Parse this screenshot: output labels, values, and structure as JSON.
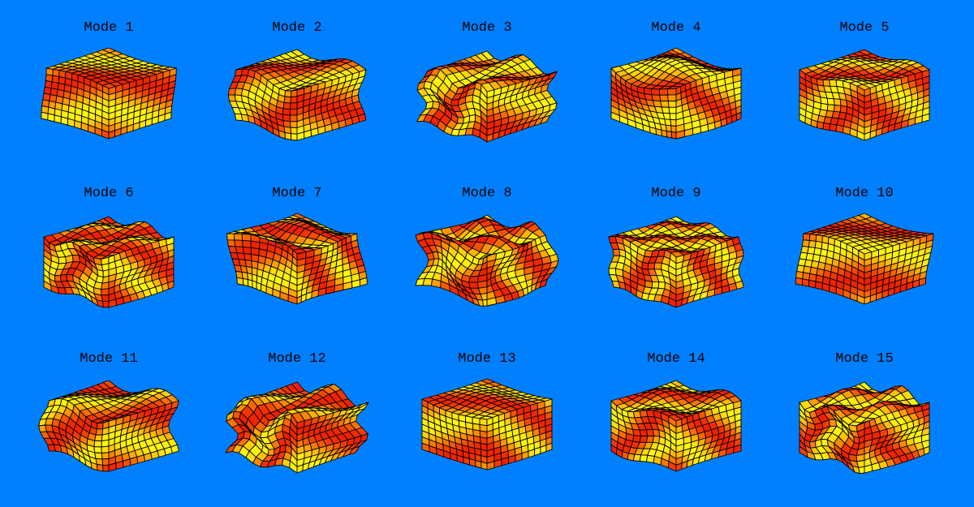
{
  "panels": [
    "Mode 1",
    "Mode 2",
    "Mode 3",
    "Mode 4",
    "Mode 5",
    "Mode 6",
    "Mode 7",
    "Mode 8",
    "Mode 9",
    "Mode 10",
    "Mode 11",
    "Mode 12",
    "Mode 13",
    "Mode 14",
    "Mode 15"
  ]
}
